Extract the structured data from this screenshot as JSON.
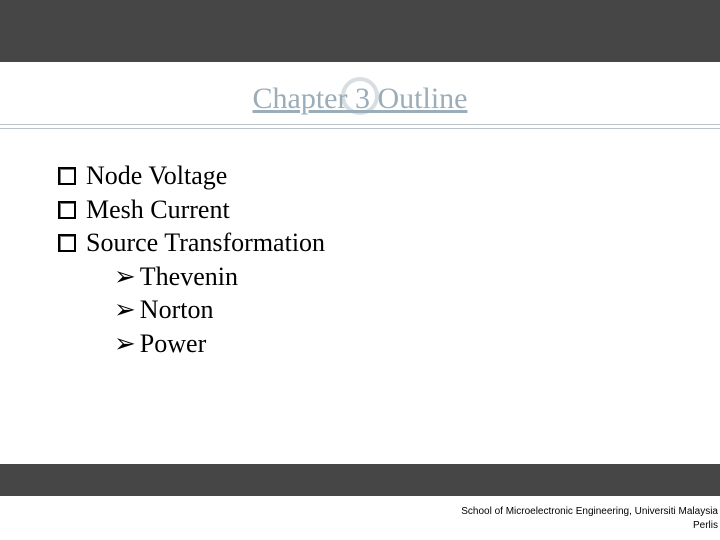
{
  "slide": {
    "title": "Chapter 3 Outline",
    "title_color": "#9aadb8",
    "title_fontsize": 30,
    "ring_color": "#c7d0d6",
    "rule_color": "#b9c4cb",
    "top_band_color": "#464646",
    "bottom_band_color": "#464646",
    "background_color": "#ffffff",
    "body_fontsize": 26,
    "body_color": "#000000",
    "items": [
      {
        "text": " Node Voltage"
      },
      {
        "text": "Mesh Current"
      },
      {
        "text": "Source Transformation"
      }
    ],
    "subitems": [
      {
        "text": "Thevenin"
      },
      {
        "text": "Norton"
      },
      {
        "text": "Power"
      }
    ],
    "footer_line1": "School of Microelectronic Engineering,  Universiti Malaysia",
    "footer_line2": "Perlis",
    "footer_fontsize": 10
  }
}
